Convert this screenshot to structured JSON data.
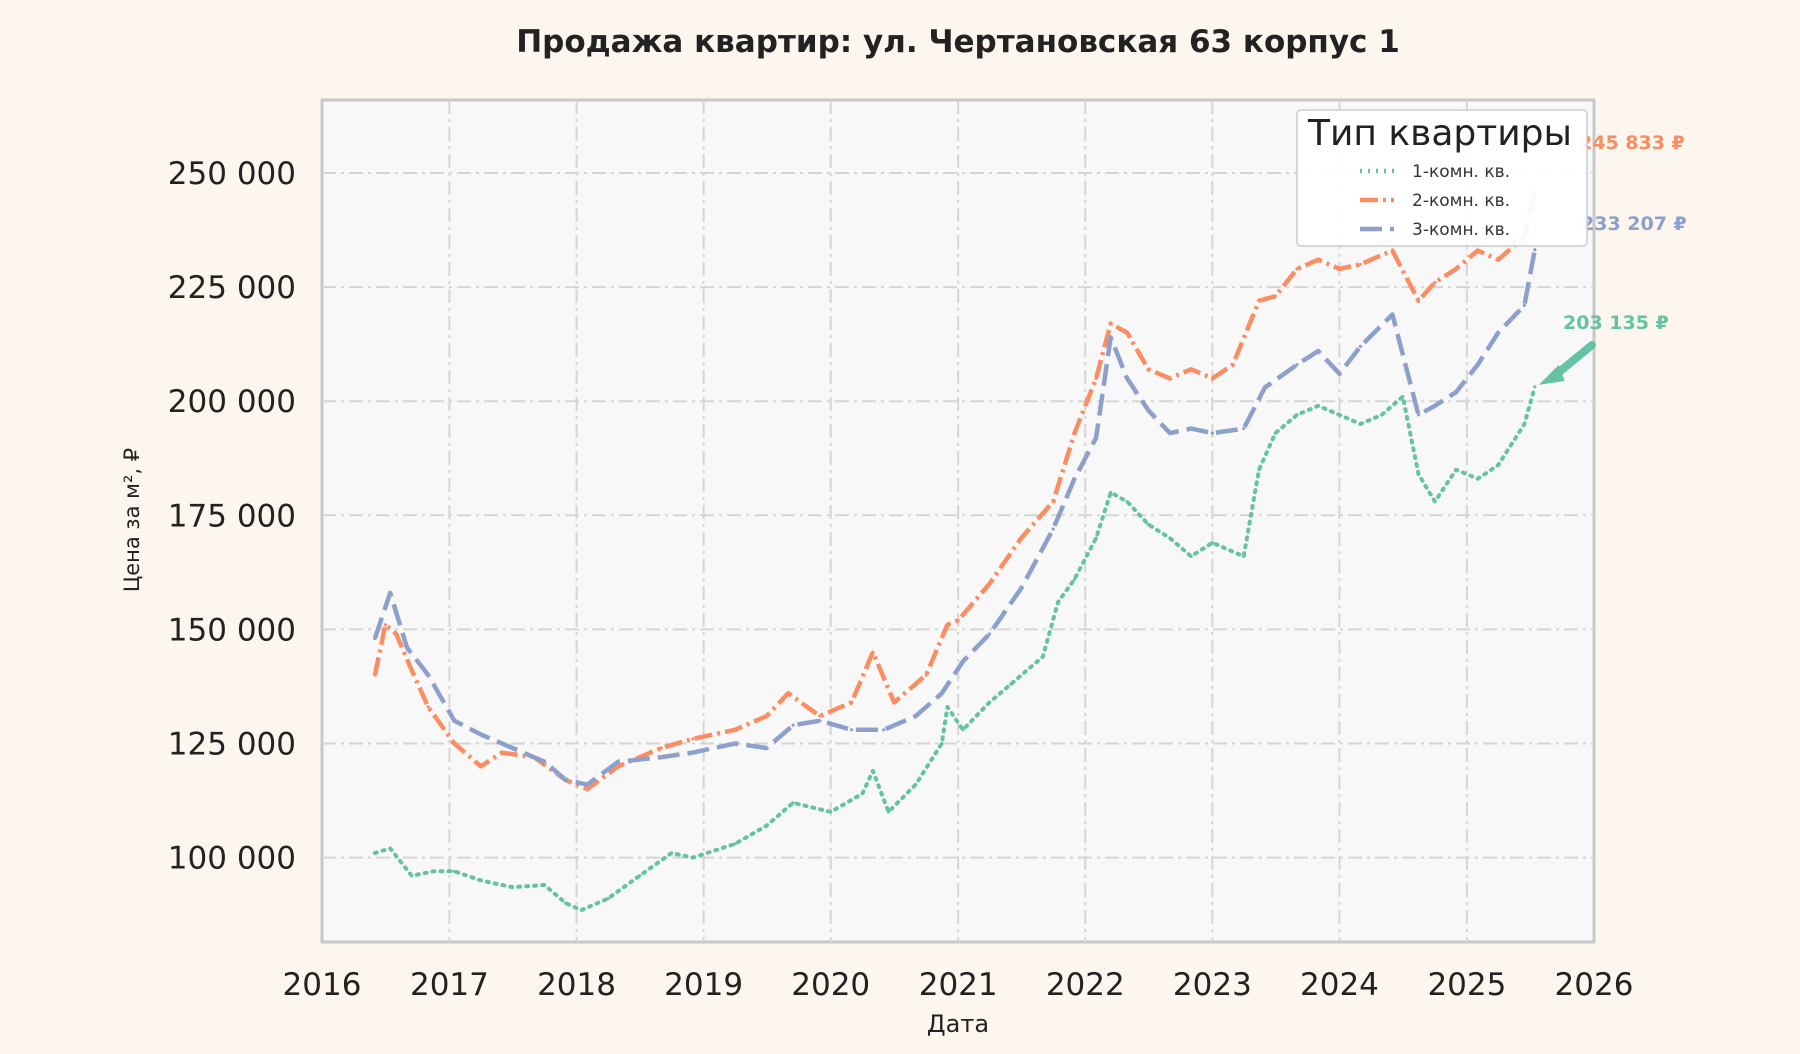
{
  "chart_data": {
    "type": "line",
    "title": "Продажа квартир: ул. Чертановская 63 корпус 1",
    "xlabel": "Дата",
    "ylabel": "Цена за м², ₽",
    "xlim": [
      "2016-01-01",
      "2026-01-01"
    ],
    "ylim": [
      81500,
      266000
    ],
    "x_ticks": [
      "2016",
      "2017",
      "2018",
      "2019",
      "2020",
      "2021",
      "2022",
      "2023",
      "2024",
      "2025",
      "2026"
    ],
    "y_ticks": [
      100000,
      125000,
      150000,
      175000,
      200000,
      225000,
      250000
    ],
    "y_tick_labels": [
      "100 000",
      "125 000",
      "150 000",
      "175 000",
      "200 000",
      "225 000",
      "250 000"
    ],
    "grid": true,
    "legend": {
      "title": "Тип квартиры",
      "placement": "top-right"
    },
    "series": [
      {
        "name": "1-комн. кв.",
        "color": "#66c2a5",
        "style": "dotted",
        "last_label": "203 135 ₽",
        "points": [
          [
            "2016-06-01",
            101000
          ],
          [
            "2016-07-15",
            102000
          ],
          [
            "2016-09-15",
            96000
          ],
          [
            "2016-11-15",
            97000
          ],
          [
            "2017-01-15",
            97000
          ],
          [
            "2017-04-01",
            95000
          ],
          [
            "2017-07-01",
            93500
          ],
          [
            "2017-10-01",
            94000
          ],
          [
            "2017-12-01",
            90000
          ],
          [
            "2018-01-15",
            88500
          ],
          [
            "2018-04-01",
            91000
          ],
          [
            "2018-07-01",
            96000
          ],
          [
            "2018-10-01",
            101000
          ],
          [
            "2018-12-01",
            100000
          ],
          [
            "2019-04-01",
            103000
          ],
          [
            "2019-07-01",
            107000
          ],
          [
            "2019-09-15",
            112000
          ],
          [
            "2020-01-01",
            110000
          ],
          [
            "2020-04-01",
            114000
          ],
          [
            "2020-05-01",
            119000
          ],
          [
            "2020-06-15",
            110000
          ],
          [
            "2020-09-01",
            116000
          ],
          [
            "2020-11-15",
            125000
          ],
          [
            "2020-12-01",
            133000
          ],
          [
            "2021-01-15",
            128000
          ],
          [
            "2021-04-01",
            134000
          ],
          [
            "2021-06-01",
            138000
          ],
          [
            "2021-09-01",
            144000
          ],
          [
            "2021-10-15",
            156000
          ],
          [
            "2021-12-01",
            161000
          ],
          [
            "2022-02-01",
            170000
          ],
          [
            "2022-03-15",
            180000
          ],
          [
            "2022-05-01",
            178000
          ],
          [
            "2022-07-01",
            173000
          ],
          [
            "2022-09-01",
            170000
          ],
          [
            "2022-11-01",
            166000
          ],
          [
            "2023-01-01",
            169000
          ],
          [
            "2023-04-01",
            166000
          ],
          [
            "2023-05-15",
            185000
          ],
          [
            "2023-07-01",
            193000
          ],
          [
            "2023-09-01",
            197000
          ],
          [
            "2023-11-01",
            199000
          ],
          [
            "2024-01-01",
            197000
          ],
          [
            "2024-03-01",
            195000
          ],
          [
            "2024-05-01",
            197000
          ],
          [
            "2024-07-01",
            201000
          ],
          [
            "2024-08-15",
            184000
          ],
          [
            "2024-10-01",
            178000
          ],
          [
            "2024-12-01",
            185000
          ],
          [
            "2025-02-01",
            183000
          ],
          [
            "2025-04-01",
            186000
          ],
          [
            "2025-06-15",
            195000
          ],
          [
            "2025-07-15",
            203135
          ]
        ]
      },
      {
        "name": "2-комн. кв.",
        "color": "#fc8d62",
        "style": "dashdot",
        "last_label": "245 833 ₽",
        "points": [
          [
            "2016-06-01",
            140000
          ],
          [
            "2016-07-01",
            151000
          ],
          [
            "2016-08-01",
            149000
          ],
          [
            "2016-09-15",
            141000
          ],
          [
            "2016-11-01",
            133000
          ],
          [
            "2017-01-15",
            125000
          ],
          [
            "2017-04-01",
            120000
          ],
          [
            "2017-06-01",
            123000
          ],
          [
            "2017-09-01",
            122000
          ],
          [
            "2017-12-01",
            117000
          ],
          [
            "2018-02-01",
            115000
          ],
          [
            "2018-05-01",
            120000
          ],
          [
            "2018-09-01",
            124000
          ],
          [
            "2018-12-01",
            126000
          ],
          [
            "2019-04-01",
            128000
          ],
          [
            "2019-07-01",
            131000
          ],
          [
            "2019-09-01",
            136000
          ],
          [
            "2019-12-01",
            131000
          ],
          [
            "2020-03-01",
            134000
          ],
          [
            "2020-05-01",
            145000
          ],
          [
            "2020-07-01",
            134000
          ],
          [
            "2020-10-01",
            140000
          ],
          [
            "2020-12-01",
            151000
          ],
          [
            "2021-01-01",
            152000
          ],
          [
            "2021-04-01",
            160000
          ],
          [
            "2021-07-01",
            170000
          ],
          [
            "2021-10-01",
            178000
          ],
          [
            "2021-12-01",
            193000
          ],
          [
            "2022-02-01",
            205000
          ],
          [
            "2022-03-15",
            217000
          ],
          [
            "2022-05-01",
            215000
          ],
          [
            "2022-07-01",
            207000
          ],
          [
            "2022-09-01",
            205000
          ],
          [
            "2022-11-01",
            207000
          ],
          [
            "2023-01-01",
            205000
          ],
          [
            "2023-03-01",
            208000
          ],
          [
            "2023-05-15",
            222000
          ],
          [
            "2023-07-01",
            223000
          ],
          [
            "2023-09-01",
            229000
          ],
          [
            "2023-11-01",
            231000
          ],
          [
            "2024-01-01",
            229000
          ],
          [
            "2024-03-01",
            230000
          ],
          [
            "2024-06-01",
            233000
          ],
          [
            "2024-08-15",
            222000
          ],
          [
            "2024-10-01",
            226000
          ],
          [
            "2024-12-01",
            229000
          ],
          [
            "2025-02-01",
            233000
          ],
          [
            "2025-04-01",
            231000
          ],
          [
            "2025-06-15",
            236000
          ],
          [
            "2025-07-15",
            245833
          ]
        ]
      },
      {
        "name": "3-комн. кв.",
        "color": "#8da0cb",
        "style": "dashed",
        "last_label": "233 207 ₽",
        "points": [
          [
            "2016-06-01",
            148000
          ],
          [
            "2016-07-15",
            158000
          ],
          [
            "2016-09-01",
            146000
          ],
          [
            "2016-11-01",
            140000
          ],
          [
            "2017-01-15",
            130000
          ],
          [
            "2017-04-01",
            127000
          ],
          [
            "2017-07-01",
            124000
          ],
          [
            "2017-10-01",
            121000
          ],
          [
            "2017-12-01",
            117000
          ],
          [
            "2018-02-01",
            116000
          ],
          [
            "2018-05-01",
            121000
          ],
          [
            "2018-09-01",
            122000
          ],
          [
            "2018-12-01",
            123000
          ],
          [
            "2019-04-01",
            125000
          ],
          [
            "2019-07-01",
            124000
          ],
          [
            "2019-09-15",
            129000
          ],
          [
            "2019-12-01",
            130000
          ],
          [
            "2020-03-01",
            128000
          ],
          [
            "2020-06-01",
            128000
          ],
          [
            "2020-09-01",
            131000
          ],
          [
            "2020-11-15",
            136000
          ],
          [
            "2021-01-15",
            143000
          ],
          [
            "2021-04-01",
            149000
          ],
          [
            "2021-07-01",
            159000
          ],
          [
            "2021-10-01",
            172000
          ],
          [
            "2021-12-01",
            183000
          ],
          [
            "2022-02-01",
            192000
          ],
          [
            "2022-03-15",
            214000
          ],
          [
            "2022-05-01",
            205000
          ],
          [
            "2022-07-01",
            198000
          ],
          [
            "2022-09-01",
            193000
          ],
          [
            "2022-11-01",
            194000
          ],
          [
            "2023-01-01",
            193000
          ],
          [
            "2023-04-01",
            194000
          ],
          [
            "2023-06-01",
            203000
          ],
          [
            "2023-09-01",
            208000
          ],
          [
            "2023-11-01",
            211000
          ],
          [
            "2024-01-01",
            206000
          ],
          [
            "2024-03-01",
            212000
          ],
          [
            "2024-06-01",
            219000
          ],
          [
            "2024-08-15",
            197000
          ],
          [
            "2024-10-01",
            199000
          ],
          [
            "2024-12-01",
            202000
          ],
          [
            "2025-02-01",
            208000
          ],
          [
            "2025-04-01",
            215000
          ],
          [
            "2025-06-15",
            221000
          ],
          [
            "2025-07-15",
            233207
          ]
        ]
      }
    ],
    "annotations": [
      {
        "text": "203 135 ₽",
        "series": "1-комн. кв.",
        "arrow": true
      }
    ]
  }
}
